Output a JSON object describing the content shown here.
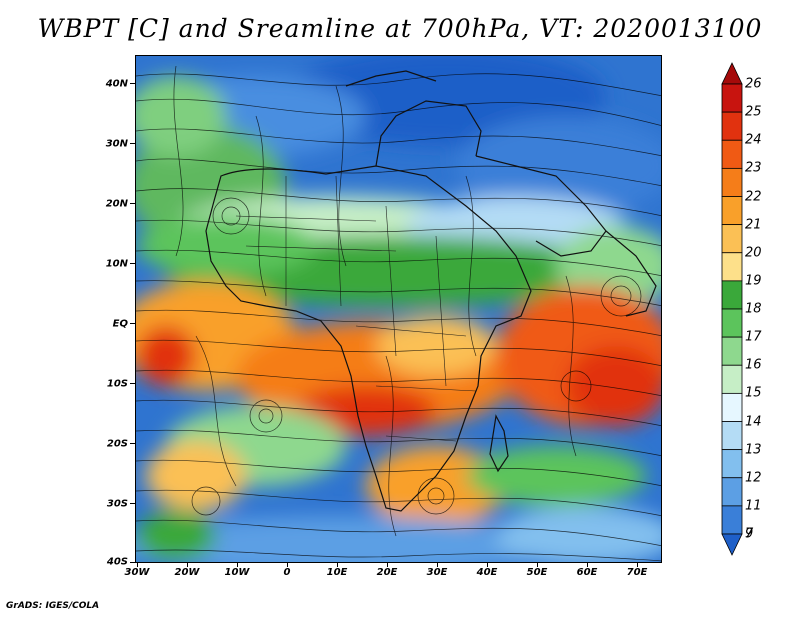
{
  "title": "WBPT [C] and Sreamline at 700hPa, VT: 2020013100",
  "credit": "GrADS: IGES/COLA",
  "map": {
    "lat_labels": [
      "40N",
      "30N",
      "20N",
      "10N",
      "EQ",
      "10S",
      "20S",
      "30S",
      "40S"
    ],
    "lon_labels": [
      "30W",
      "20W",
      "10W",
      "0",
      "10E",
      "20E",
      "30E",
      "40E",
      "50E",
      "60E",
      "70E"
    ],
    "lat_range": [
      -40,
      45
    ],
    "lon_range": [
      -30,
      75
    ],
    "field": "wet-bulb potential temperature with streamlines"
  },
  "colorbar": {
    "labels": [
      "26",
      "25",
      "24",
      "23",
      "22",
      "21",
      "20",
      "19",
      "18",
      "17",
      "16",
      "15",
      "14",
      "13",
      "12",
      "11",
      "9",
      "7"
    ],
    "colors": [
      "#a50a0a",
      "#c8140f",
      "#e1320f",
      "#f05a14",
      "#f57d19",
      "#f9a02a",
      "#fbc055",
      "#fde08a",
      "#3aa83a",
      "#5cc45c",
      "#8ed88e",
      "#c6eec6",
      "#e6f7ff",
      "#b4dcf5",
      "#82bfee",
      "#5c9fe4",
      "#3a7fd8",
      "#1e5fc8"
    ]
  }
}
